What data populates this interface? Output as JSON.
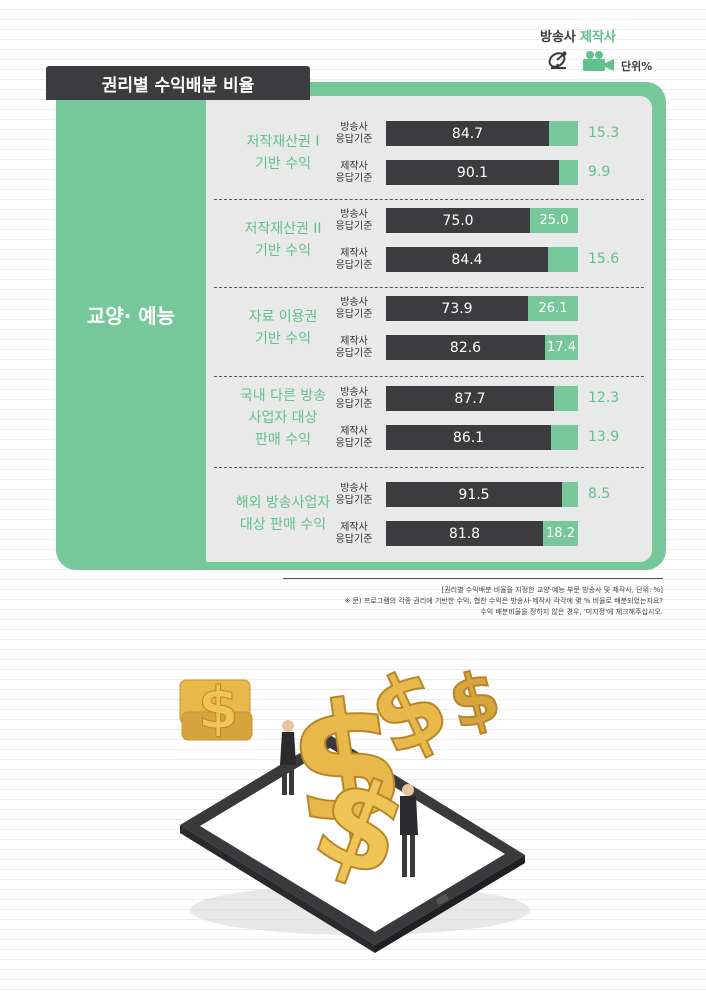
{
  "legend": {
    "broadcaster_label": "방송사",
    "producer_label": "제작사",
    "unit_label": "단위%",
    "broadcaster_color": "#3c3c3e",
    "producer_color": "#76c79a",
    "broadcaster_icon": "satellite-dish-icon",
    "producer_icon": "video-camera-icon"
  },
  "title": "권리별 수익배분 비율",
  "genre": "교양· 예능",
  "chart_data": {
    "type": "bar",
    "orientation": "horizontal",
    "stacked": true,
    "title": "권리별 수익배분 비율",
    "unit": "%",
    "xlim": [
      0,
      100
    ],
    "categories": [
      {
        "label": "저작재산권 I\n기반 수익",
        "lines": [
          "저작재산권 I",
          "기반 수익"
        ]
      },
      {
        "label": "저작재산권 II\n기반 수익",
        "lines": [
          "저작재산권 II",
          "기반 수익"
        ]
      },
      {
        "label": "자료 이용권\n기반 수익",
        "lines": [
          "자료 이용권",
          "기반 수익"
        ]
      },
      {
        "label": "국내 다른 방송\n사업자 대상\n판매 수익",
        "lines": [
          "국내 다른 방송",
          "사업자 대상",
          "판매 수익"
        ]
      },
      {
        "label": "해외 방송사업자\n대상 판매 수익",
        "lines": [
          "해외 방송사업자",
          "대상 판매 수익"
        ]
      }
    ],
    "rows": [
      {
        "category": 0,
        "basis": "방송사\n응답기준",
        "basis_lines": [
          "방송사",
          "응답기준"
        ],
        "broadcaster": 84.7,
        "producer": 15.3
      },
      {
        "category": 0,
        "basis": "제작사\n응답기준",
        "basis_lines": [
          "제작사",
          "응답기준"
        ],
        "broadcaster": 90.1,
        "producer": 9.9
      },
      {
        "category": 1,
        "basis": "방송사\n응답기준",
        "basis_lines": [
          "방송사",
          "응답기준"
        ],
        "broadcaster": 75.0,
        "producer": 25.0
      },
      {
        "category": 1,
        "basis": "제작사\n응답기준",
        "basis_lines": [
          "제작사",
          "응답기준"
        ],
        "broadcaster": 84.4,
        "producer": 15.6
      },
      {
        "category": 2,
        "basis": "방송사\n응답기준",
        "basis_lines": [
          "방송사",
          "응답기준"
        ],
        "broadcaster": 73.9,
        "producer": 26.1
      },
      {
        "category": 2,
        "basis": "제작사\n응답기준",
        "basis_lines": [
          "제작사",
          "응답기준"
        ],
        "broadcaster": 82.6,
        "producer": 17.4
      },
      {
        "category": 3,
        "basis": "방송사\n응답기준",
        "basis_lines": [
          "방송사",
          "응답기준"
        ],
        "broadcaster": 87.7,
        "producer": 12.3
      },
      {
        "category": 3,
        "basis": "제작사\n응답기준",
        "basis_lines": [
          "제작사",
          "응답기준"
        ],
        "broadcaster": 86.1,
        "producer": 13.9
      },
      {
        "category": 4,
        "basis": "방송사\n응답기준",
        "basis_lines": [
          "방송사",
          "응답기준"
        ],
        "broadcaster": 91.5,
        "producer": 8.5
      },
      {
        "category": 4,
        "basis": "제작사\n응답기준",
        "basis_lines": [
          "제작사",
          "응답기준"
        ],
        "broadcaster": 81.8,
        "producer": 18.2
      }
    ],
    "series": [
      {
        "name": "방송사",
        "color": "#3c3c3e"
      },
      {
        "name": "제작사",
        "color": "#76c79a"
      }
    ]
  },
  "notes": {
    "line1": "[권리별 수익배분 비율을 지정한 교양·예능 부문 방송사 및 제작사, 단위: %]",
    "line2": "※ 문) 프로그램의 각종 권리에 기반한 수익, 협찬 수익은 방송사·제작사 각각에 몇 % 비율로 배분되었는지요?",
    "line3": "수익 배분비율을 정하지 않은 경우, '미지정'에 체크해주십시오."
  },
  "illustration": {
    "description_icon": "tablet-dollar-signs-businessmen-illustration",
    "coin_color": "#e8b84a",
    "shade_color": "#c99530"
  }
}
